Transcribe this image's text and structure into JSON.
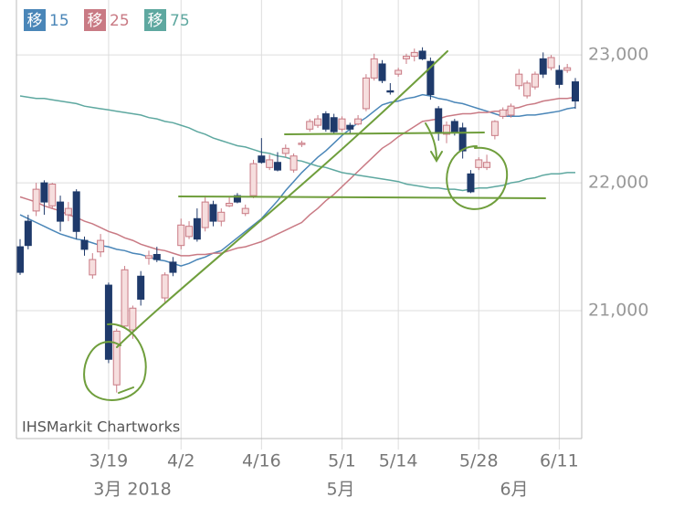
{
  "chart_data": {
    "type": "candlestick",
    "watermark": "IHSMarkit Chartworks",
    "month_labels": [
      "3月 2018",
      "5月",
      "6月"
    ],
    "categories": [
      null,
      null,
      null,
      null,
      null,
      null,
      null,
      null,
      null,
      null,
      null,
      "3/19",
      null,
      null,
      null,
      null,
      null,
      null,
      null,
      null,
      "4/2",
      null,
      null,
      null,
      null,
      null,
      null,
      null,
      null,
      null,
      "4/16",
      null,
      null,
      null,
      null,
      null,
      null,
      null,
      null,
      null,
      "5/1",
      null,
      null,
      null,
      null,
      null,
      null,
      "5/14",
      null,
      null,
      null,
      null,
      null,
      null,
      null,
      null,
      null,
      "5/28",
      null,
      null,
      null,
      null,
      null,
      null,
      null,
      null,
      null,
      "6/11",
      null,
      null
    ],
    "open": [
      21500,
      21700,
      21780,
      22000,
      21820,
      21850,
      21750,
      21930,
      21550,
      21280,
      21460,
      21200,
      20420,
      20880,
      20850,
      21270,
      21410,
      21440,
      21100,
      21380,
      21510,
      21580,
      21720,
      21650,
      21830,
      21700,
      21820,
      21900,
      21760,
      21900,
      22210,
      22120,
      22160,
      22230,
      22100,
      22300,
      22420,
      22450,
      22540,
      22510,
      22420,
      22450,
      22460,
      22580,
      22820,
      22930,
      22720,
      22850,
      22970,
      22990,
      23030,
      22950,
      22580,
      22380,
      22480,
      22430,
      22070,
      22120,
      22120,
      22370,
      22520,
      22530,
      22760,
      22680,
      22750,
      22970,
      22900,
      22880,
      22880,
      22790
    ],
    "high": [
      21560,
      21750,
      22000,
      22020,
      22000,
      21900,
      21850,
      21950,
      21580,
      21450,
      21600,
      21220,
      20860,
      21350,
      21040,
      21310,
      21470,
      21500,
      21300,
      21420,
      21720,
      21700,
      21800,
      21900,
      21860,
      21800,
      21890,
      21920,
      21830,
      22180,
      22350,
      22220,
      22240,
      22300,
      22230,
      22330,
      22500,
      22530,
      22560,
      22540,
      22520,
      22470,
      22530,
      22850,
      23010,
      22960,
      22780,
      22900,
      23010,
      23050,
      23060,
      22980,
      22600,
      22480,
      22500,
      22470,
      22100,
      22200,
      22220,
      22490,
      22590,
      22620,
      22890,
      22800,
      22870,
      23020,
      23000,
      22920,
      22930,
      22820
    ],
    "low": [
      21280,
      21480,
      21740,
      21750,
      21800,
      21620,
      21700,
      21560,
      21430,
      21250,
      21420,
      20590,
      20360,
      20860,
      20780,
      21040,
      21360,
      21380,
      21060,
      21270,
      21480,
      21560,
      21540,
      21620,
      21660,
      21660,
      21810,
      21840,
      21740,
      21880,
      22150,
      22100,
      22090,
      22200,
      22080,
      22280,
      22400,
      22430,
      22400,
      22380,
      22400,
      22380,
      22450,
      22560,
      22800,
      22780,
      22690,
      22830,
      22930,
      22950,
      22960,
      22650,
      22330,
      22310,
      22370,
      22190,
      21920,
      22100,
      22100,
      22340,
      22500,
      22510,
      22730,
      22660,
      22730,
      22820,
      22880,
      22740,
      22860,
      22580
    ],
    "close": [
      21300,
      21510,
      21950,
      21850,
      21990,
      21700,
      21800,
      21620,
      21480,
      21400,
      21550,
      20620,
      20840,
      21320,
      21020,
      21090,
      21430,
      21400,
      21280,
      21300,
      21670,
      21660,
      21560,
      21850,
      21700,
      21770,
      21840,
      21850,
      21800,
      22150,
      22160,
      22180,
      22100,
      22270,
      22210,
      22310,
      22480,
      22500,
      22420,
      22400,
      22500,
      22420,
      22500,
      22820,
      22970,
      22800,
      22710,
      22880,
      22990,
      23020,
      22970,
      22690,
      22400,
      22450,
      22400,
      22250,
      21930,
      22180,
      22160,
      22480,
      22570,
      22600,
      22850,
      22780,
      22850,
      22850,
      22980,
      22770,
      22900,
      22640
    ],
    "up_color": "#c97a84",
    "down_color": "#1f3a6b",
    "series": [
      {
        "badge": "移",
        "name": "15",
        "color": "#4a86b8",
        "values": [
          21750,
          21720,
          21690,
          21660,
          21630,
          21600,
          21580,
          21560,
          21550,
          21530,
          21510,
          21500,
          21480,
          21470,
          21450,
          21440,
          21420,
          21400,
          21390,
          21370,
          21350,
          21370,
          21400,
          21420,
          21450,
          21470,
          21520,
          21570,
          21620,
          21670,
          21720,
          21790,
          21860,
          21940,
          22010,
          22080,
          22140,
          22200,
          22250,
          22310,
          22370,
          22420,
          22470,
          22510,
          22560,
          22610,
          22630,
          22640,
          22660,
          22670,
          22690,
          22680,
          22660,
          22650,
          22630,
          22620,
          22600,
          22580,
          22560,
          22540,
          22520,
          22520,
          22520,
          22530,
          22530,
          22540,
          22550,
          22560,
          22580,
          22590
        ]
      },
      {
        "badge": "移",
        "name": "25",
        "color": "#c97a84",
        "values": [
          21890,
          21870,
          21850,
          21820,
          21800,
          21780,
          21750,
          21730,
          21700,
          21680,
          21650,
          21620,
          21600,
          21570,
          21550,
          21520,
          21500,
          21480,
          21470,
          21450,
          21430,
          21430,
          21440,
          21440,
          21450,
          21450,
          21470,
          21490,
          21500,
          21520,
          21540,
          21570,
          21600,
          21630,
          21660,
          21690,
          21750,
          21800,
          21860,
          21910,
          21970,
          22030,
          22090,
          22150,
          22210,
          22270,
          22310,
          22360,
          22400,
          22440,
          22480,
          22490,
          22500,
          22520,
          22530,
          22540,
          22540,
          22550,
          22550,
          22560,
          22560,
          22580,
          22590,
          22610,
          22620,
          22640,
          22650,
          22660,
          22660,
          22670
        ]
      },
      {
        "badge": "移",
        "name": "75",
        "color": "#5ea8a0",
        "values": [
          22680,
          22670,
          22660,
          22660,
          22650,
          22640,
          22630,
          22620,
          22600,
          22590,
          22580,
          22570,
          22560,
          22550,
          22540,
          22530,
          22510,
          22500,
          22480,
          22470,
          22450,
          22430,
          22400,
          22380,
          22350,
          22330,
          22310,
          22290,
          22280,
          22260,
          22240,
          22230,
          22210,
          22200,
          22180,
          22170,
          22150,
          22130,
          22120,
          22100,
          22080,
          22070,
          22060,
          22050,
          22040,
          22030,
          22020,
          22010,
          21990,
          21980,
          21970,
          21960,
          21960,
          21950,
          21950,
          21940,
          21950,
          21960,
          21960,
          21970,
          21980,
          22000,
          22010,
          22030,
          22040,
          22060,
          22070,
          22070,
          22080,
          22080
        ]
      }
    ],
    "ylim": [
      20000,
      23430
    ],
    "yticks": [
      {
        "value": 21000,
        "label": "21,000"
      },
      {
        "value": 22000,
        "label": "22,000"
      },
      {
        "value": 23000,
        "label": "23,000"
      }
    ],
    "grid": true
  }
}
